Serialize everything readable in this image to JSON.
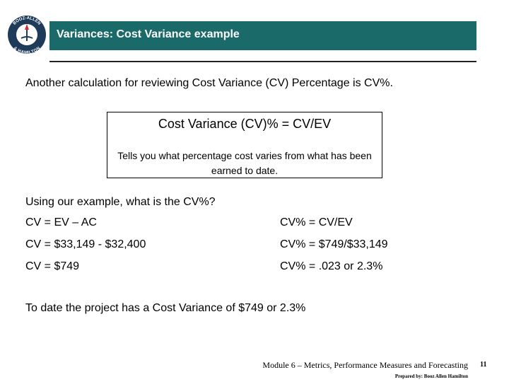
{
  "logo": {
    "top": "BOOZ·ALLEN",
    "bottom": "& HAMILTON"
  },
  "header": {
    "title": "Variances: Cost Variance example"
  },
  "intro": "Another calculation for reviewing Cost Variance (CV) Percentage is CV%.",
  "definition": {
    "formula": "Cost Variance (CV)% = CV/EV",
    "description": "Tells you what percentage cost varies from what has been earned to date."
  },
  "question": "Using our example, what is the CV%?",
  "rows": [
    [
      "CV = EV – AC",
      "CV% = CV/EV"
    ],
    [
      "CV = $33,149 - $32,400",
      "CV% = $749/$33,149"
    ],
    [
      "CV = $749",
      "CV% = .023 or 2.3%"
    ]
  ],
  "conclusion": "To date the project has a Cost Variance of $749 or 2.3%",
  "footer": {
    "module": "Module 6 – Metrics, Performance Measures and Forecasting",
    "page": "11",
    "prepared": "Prepared by: Booz Allen Hamilton"
  }
}
